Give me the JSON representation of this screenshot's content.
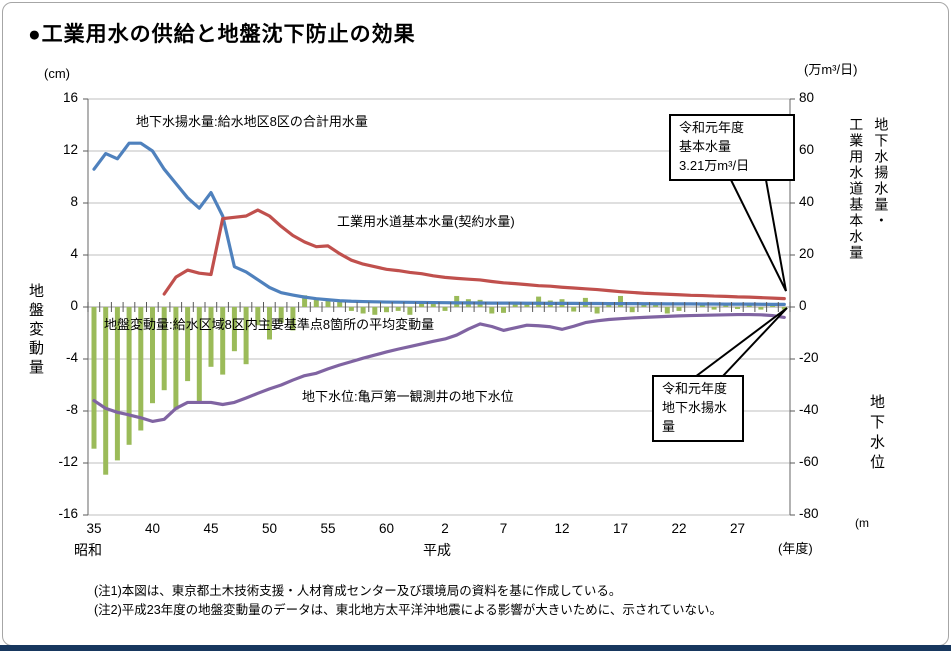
{
  "title": "●工業用水の供給と地盤沈下防止の効果",
  "axes": {
    "left": {
      "unit": "(cm)",
      "label": "地盤変動量",
      "ticks": [
        16,
        12,
        8,
        4,
        0,
        -4,
        -8,
        -12,
        -16
      ]
    },
    "right": {
      "unit": "(万m³/日)",
      "upper_label": "地下水揚水量・\n工業用水道基本水量",
      "lower_label": "地下水位",
      "lower_unit": "(m",
      "ticks": [
        80,
        60,
        40,
        20,
        0,
        -20,
        -40,
        -60,
        -80
      ]
    },
    "x": {
      "era_left": "昭和",
      "era_right": "平成",
      "unit": "(年度)",
      "ticks": [
        {
          "label": "35",
          "index": 0
        },
        {
          "label": "40",
          "index": 5
        },
        {
          "label": "45",
          "index": 10
        },
        {
          "label": "50",
          "index": 15
        },
        {
          "label": "55",
          "index": 20
        },
        {
          "label": "60",
          "index": 25
        },
        {
          "label": "2",
          "index": 30
        },
        {
          "label": "7",
          "index": 35
        },
        {
          "label": "12",
          "index": 40
        },
        {
          "label": "17",
          "index": 45
        },
        {
          "label": "22",
          "index": 50
        },
        {
          "label": "27",
          "index": 55
        }
      ]
    }
  },
  "annotations": {
    "pumping": "地下水揚水量:給水地区8区の合計用水量",
    "contract": "工業用水道基本水量(契約水量)",
    "subsidence": "地盤変動量:給水区域8区内主要基準点8箇所の平均変動量",
    "gwlevel": "地下水位:亀戸第一観測井の地下水位"
  },
  "callouts": [
    {
      "text": "令和元年度\n基本水量\n3.21万m³/日"
    },
    {
      "text": "令和元年度\n地下水揚水\n量"
    }
  ],
  "notes": "(注1)本図は、東京都土木技術支援・人材育成センター及び環境局の資料を基に作成している。\n(注2)平成23年度の地盤変動量のデータは、東北地方太平洋沖地震による影響が大きいために、示されていない。",
  "chart_data": {
    "type": "combo (bar + 3 lines, dual axis)",
    "x_years_fiscal": [
      1960,
      1961,
      1962,
      1963,
      1964,
      1965,
      1966,
      1967,
      1968,
      1969,
      1970,
      1971,
      1972,
      1973,
      1974,
      1975,
      1976,
      1977,
      1978,
      1979,
      1980,
      1981,
      1982,
      1983,
      1984,
      1985,
      1986,
      1987,
      1988,
      1989,
      1990,
      1991,
      1992,
      1993,
      1994,
      1995,
      1996,
      1997,
      1998,
      1999,
      2000,
      2001,
      2002,
      2003,
      2004,
      2005,
      2006,
      2007,
      2008,
      2009,
      2010,
      2011,
      2012,
      2013,
      2014,
      2015,
      2016,
      2017,
      2018,
      2019
    ],
    "left_axis": {
      "label": "地盤変動量 (cm)",
      "range": [
        -16,
        16
      ],
      "grid_step": 4
    },
    "right_axis": {
      "label": "地下水揚水量・工業用水道基本水量 (万m³/日) / 地下水位 (m)",
      "range": [
        -80,
        80
      ],
      "grid_step": 20
    },
    "series": [
      {
        "name": "地下水揚水量:給水地区8区の合計用水量",
        "type": "line",
        "axis": "right",
        "color": "#4f81bd",
        "values": [
          53,
          59,
          57,
          63,
          63,
          60,
          53,
          47.5,
          42,
          38,
          44,
          35,
          15.5,
          13.5,
          10.5,
          7.5,
          5.5,
          4.6,
          3.8,
          3.2,
          2.8,
          2.4,
          2.2,
          2.1,
          2.0,
          1.9,
          1.85,
          1.8,
          1.75,
          1.7,
          1.65,
          1.6,
          1.6,
          1.55,
          1.5,
          1.5,
          1.5,
          1.45,
          1.45,
          1.4,
          1.4,
          1.4,
          1.35,
          1.35,
          1.3,
          1.3,
          1.3,
          1.25,
          1.25,
          1.2,
          1.2,
          1.2,
          1.15,
          1.15,
          1.1,
          1.1,
          1.1,
          1.05,
          1.0,
          1.0
        ]
      },
      {
        "name": "工業用水道基本水量(契約水量)",
        "type": "line",
        "axis": "right",
        "color": "#c0504d",
        "values": [
          null,
          null,
          null,
          null,
          null,
          null,
          5,
          11.5,
          14.2,
          13,
          12.5,
          34,
          34.5,
          35,
          37.3,
          35,
          31,
          27.5,
          25,
          23.2,
          23.5,
          20.5,
          18,
          16.5,
          15.5,
          14.5,
          14,
          13.3,
          12.8,
          12,
          11.4,
          11,
          10.7,
          10.4,
          9.8,
          9.3,
          9,
          8.6,
          8.2,
          8,
          7.6,
          7.3,
          7,
          6.7,
          6.3,
          5.9,
          5.6,
          5.3,
          5.1,
          4.9,
          4.7,
          4.5,
          4.4,
          4.2,
          4.1,
          3.9,
          3.8,
          3.6,
          3.4,
          3.21
        ]
      },
      {
        "name": "地下水位:亀戸第一観測井の地下水位",
        "type": "line",
        "axis": "right",
        "color": "#8064a2",
        "values": [
          -36,
          -39,
          -40.5,
          -41.5,
          -42.6,
          -44,
          -43.2,
          -39,
          -36.7,
          -36.7,
          -36.7,
          -37.5,
          -36.7,
          -35,
          -33.2,
          -31.5,
          -30,
          -28.1,
          -26.4,
          -25.5,
          -23.8,
          -22.3,
          -21,
          -19.7,
          -18.5,
          -17.3,
          -16.2,
          -15.2,
          -14.2,
          -13.2,
          -12.3,
          -10.8,
          -8.5,
          -6.5,
          -7.5,
          -9,
          -8,
          -7,
          -7.2,
          -7.6,
          -8.6,
          -7.4,
          -6,
          -5.3,
          -4.8,
          -4.5,
          -4.2,
          -4,
          -3.8,
          -3.6,
          -3.4,
          -3.3,
          -3.2,
          -3.1,
          -3,
          -2.9,
          -2.9,
          -3,
          -3.3,
          -4
        ]
      },
      {
        "name": "地盤変動量:給水区域8区内主要基準点8箇所の平均変動量",
        "type": "bar",
        "axis": "left",
        "color": "#9bbb59",
        "values": [
          -10.9,
          -12.9,
          -11.8,
          -10.6,
          -9.5,
          -7.4,
          -6.4,
          -7.9,
          -5.7,
          -7.3,
          -4.6,
          -5.2,
          -3.4,
          -4.4,
          -1.4,
          -2.5,
          -1.2,
          -1.8,
          0.9,
          0.7,
          0.6,
          0.55,
          -0.3,
          -0.5,
          -0.6,
          -0.4,
          -0.3,
          -0.6,
          0.4,
          0.3,
          -0.3,
          0.85,
          0.6,
          0.55,
          -0.5,
          -0.45,
          0.4,
          0.3,
          0.8,
          0.5,
          0.6,
          -0.35,
          0.7,
          -0.5,
          0.3,
          0.85,
          -0.4,
          0.3,
          0.25,
          -0.5,
          -0.3,
          null,
          0.2,
          -0.2,
          0.15,
          -0.15,
          0.2,
          -0.2,
          0.15,
          -0.2
        ]
      }
    ],
    "highlight_values": {
      "reiwa1_basic_water": "3.21万m³/日"
    },
    "grid": "horizontal only",
    "legend": "inline text labels near each series"
  },
  "colors": {
    "pumping_line": "#4f81bd",
    "contract_line": "#c0504d",
    "subsidence_bar": "#9bbb59",
    "gwlevel_line": "#8064a2",
    "gridline": "#bfbfbf",
    "axis": "#808080",
    "bottom_band": "#17375e"
  }
}
